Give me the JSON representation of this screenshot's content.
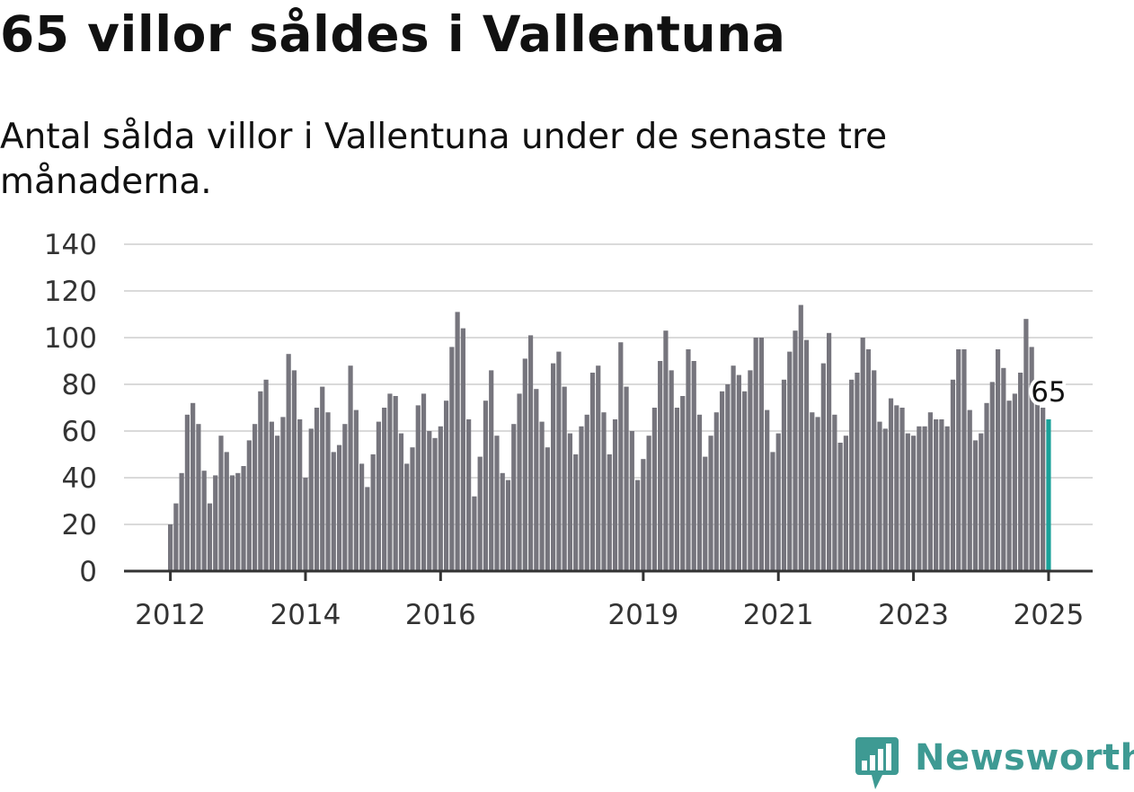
{
  "chart_data": {
    "type": "bar",
    "title": "65 villor såldes i Vallentuna",
    "subtitle": "Antal sålda villor i Vallentuna under de senaste tre månaderna.",
    "start": "2012-01",
    "x_tick_labels": [
      "2012",
      "2014",
      "2016",
      "2019",
      "2021",
      "2023",
      "2025"
    ],
    "y_ticks": [
      0,
      20,
      40,
      60,
      80,
      100,
      120,
      140
    ],
    "ylim": [
      0,
      140
    ],
    "grid": true,
    "values": [
      20,
      29,
      42,
      67,
      72,
      63,
      43,
      29,
      41,
      58,
      51,
      41,
      42,
      45,
      56,
      63,
      77,
      82,
      64,
      58,
      66,
      93,
      86,
      65,
      40,
      61,
      70,
      79,
      68,
      51,
      54,
      63,
      88,
      69,
      46,
      36,
      50,
      64,
      70,
      76,
      75,
      59,
      46,
      53,
      71,
      76,
      60,
      57,
      62,
      73,
      96,
      111,
      104,
      65,
      32,
      49,
      73,
      86,
      58,
      42,
      39,
      63,
      76,
      91,
      101,
      78,
      64,
      53,
      89,
      94,
      79,
      59,
      50,
      62,
      67,
      85,
      88,
      68,
      50,
      65,
      98,
      79,
      60,
      39,
      48,
      58,
      70,
      90,
      103,
      86,
      70,
      75,
      95,
      90,
      67,
      49,
      58,
      68,
      77,
      80,
      88,
      84,
      77,
      86,
      100,
      100,
      69,
      51,
      59,
      82,
      94,
      103,
      114,
      99,
      68,
      66,
      89,
      102,
      67,
      55,
      58,
      82,
      85,
      100,
      95,
      86,
      64,
      61,
      74,
      71,
      70,
      59,
      58,
      62,
      62,
      68,
      65,
      65,
      62,
      82,
      95,
      95,
      69,
      56,
      59,
      72,
      81,
      95,
      87,
      73,
      76,
      85,
      108,
      96,
      72,
      70,
      65
    ],
    "highlight": {
      "index": 156,
      "label": "65"
    },
    "colors": {
      "bar": "#76757d",
      "highlight": "#19a199",
      "grid": "#dadada"
    }
  },
  "branding": {
    "name": "Newsworthy",
    "icon": "newsworthy-chart-logo-icon",
    "color": "#3e9a93"
  }
}
